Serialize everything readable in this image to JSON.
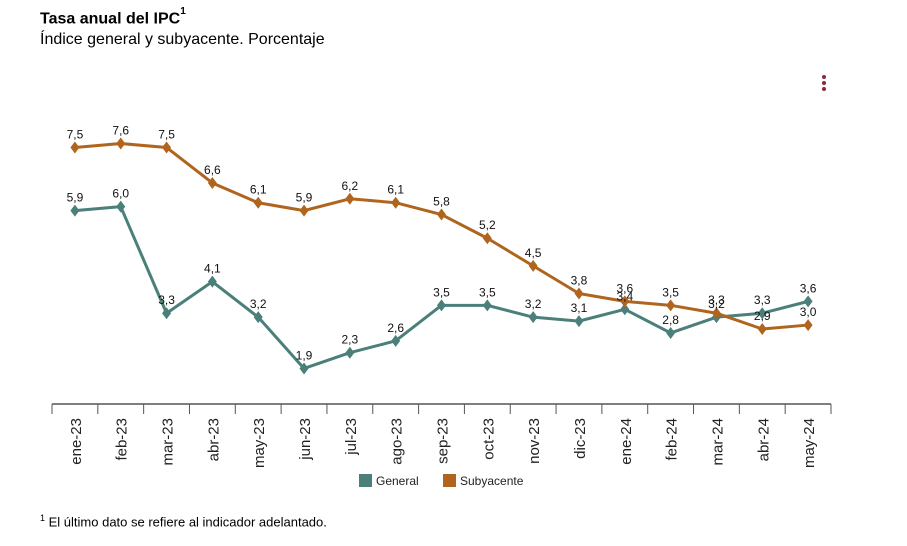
{
  "title": "Tasa anual del IPC",
  "title_sup": "1",
  "subtitle": "Índice general y subyacente. Porcentaje",
  "menu_icon": "kebab-menu-icon",
  "footnote_sup": "1",
  "footnote": "El último dato se refiere al indicador adelantado.",
  "chart_data": {
    "type": "line",
    "title": "Tasa anual del IPC",
    "categories": [
      "ene-23",
      "feb-23",
      "mar-23",
      "abr-23",
      "may-23",
      "jun-23",
      "jul-23",
      "ago-23",
      "sep-23",
      "oct-23",
      "nov-23",
      "dic-23",
      "ene-24",
      "feb-24",
      "mar-24",
      "abr-24",
      "may-24"
    ],
    "series": [
      {
        "name": "General",
        "color": "#4a7f7a",
        "values": [
          5.9,
          6.0,
          3.3,
          4.1,
          3.2,
          1.9,
          2.3,
          2.6,
          3.5,
          3.5,
          3.2,
          3.1,
          3.4,
          2.8,
          3.2,
          3.3,
          3.6
        ],
        "labels": [
          "5,9",
          "6,0",
          "3,3",
          "4,1",
          "3,2",
          "1,9",
          "2,3",
          "2,6",
          "3,5",
          "3,5",
          "3,2",
          "3,1",
          "3,4",
          "2,8",
          "3,2",
          "3,3",
          "3,6"
        ]
      },
      {
        "name": "Subyacente",
        "color": "#b0651f",
        "values": [
          7.5,
          7.6,
          7.5,
          6.6,
          6.1,
          5.9,
          6.2,
          6.1,
          5.8,
          5.2,
          4.5,
          3.8,
          3.6,
          3.5,
          3.3,
          2.9,
          3.0
        ],
        "labels": [
          "7,5",
          "7,6",
          "7,5",
          "6,6",
          "6,1",
          "5,9",
          "6,2",
          "6,1",
          "5,8",
          "5,2",
          "4,5",
          "3,8",
          "3,6",
          "3,5",
          "3,3",
          "2,9",
          "3,0"
        ]
      }
    ],
    "xlabel": "",
    "ylabel": "",
    "ylim": [
      1.0,
      8.5
    ],
    "grid": false,
    "legend": "bottom-center"
  }
}
